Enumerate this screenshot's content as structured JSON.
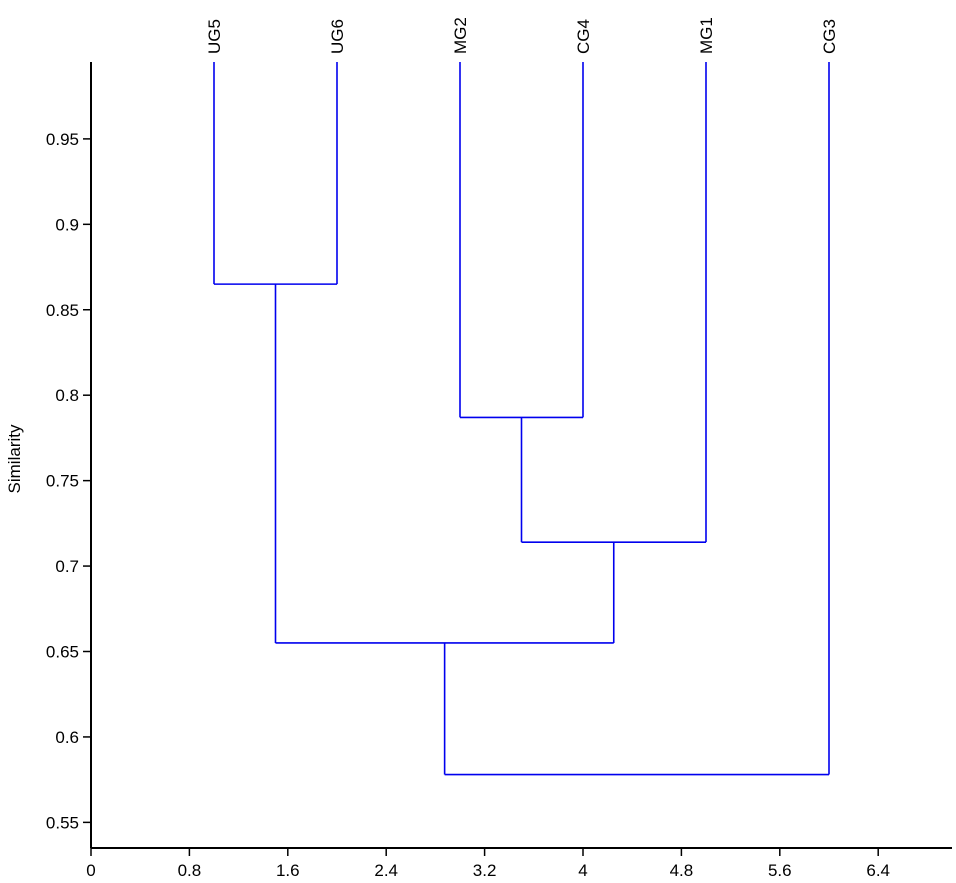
{
  "chart_data": {
    "type": "dendrogram",
    "ylabel": "Similarity",
    "xlim": [
      0,
      7.0
    ],
    "ylim": [
      0.535,
      0.995
    ],
    "x_ticks": [
      0,
      0.8,
      1.6,
      2.4,
      3.2,
      4,
      4.8,
      5.6,
      6.4
    ],
    "x_tick_labels": [
      "0",
      "0.8",
      "1.6",
      "2.4",
      "3.2",
      "4",
      "4.8",
      "5.6",
      "6.4"
    ],
    "y_ticks": [
      0.55,
      0.6,
      0.65,
      0.7,
      0.75,
      0.8,
      0.85,
      0.9,
      0.95
    ],
    "y_tick_labels": [
      "0.55",
      "0.6",
      "0.65",
      "0.7",
      "0.75",
      "0.8",
      "0.85",
      "0.9",
      "0.95"
    ],
    "leaves": [
      {
        "label": "UG5",
        "x": 1
      },
      {
        "label": "UG6",
        "x": 2
      },
      {
        "label": "MG2",
        "x": 3
      },
      {
        "label": "CG4",
        "x": 4
      },
      {
        "label": "MG1",
        "x": 5
      },
      {
        "label": "CG3",
        "x": 6
      }
    ],
    "leaf_top": 0.995,
    "merges": [
      {
        "left": "UG5",
        "right": "UG6",
        "left_x": 1.0,
        "right_x": 2.0,
        "similarity": 0.865,
        "left_height": 0.995,
        "right_height": 0.995
      },
      {
        "left": "MG2",
        "right": "CG4",
        "left_x": 3.0,
        "right_x": 4.0,
        "similarity": 0.787,
        "left_height": 0.995,
        "right_height": 0.995
      },
      {
        "left": "MG2+CG4",
        "right": "MG1",
        "left_x": 3.5,
        "right_x": 5.0,
        "similarity": 0.714,
        "left_height": 0.787,
        "right_height": 0.995
      },
      {
        "left": "UG5+UG6",
        "right": "MG2+CG4+MG1",
        "left_x": 1.5,
        "right_x": 4.25,
        "similarity": 0.655,
        "left_height": 0.865,
        "right_height": 0.714
      },
      {
        "left": "UG5+UG6+MG2+CG4+MG1",
        "right": "CG3",
        "left_x": 2.875,
        "right_x": 6.0,
        "similarity": 0.578,
        "left_height": 0.655,
        "right_height": 0.995
      }
    ],
    "line_color": "#0000ee",
    "axis_color": "#000000",
    "grid": false
  }
}
